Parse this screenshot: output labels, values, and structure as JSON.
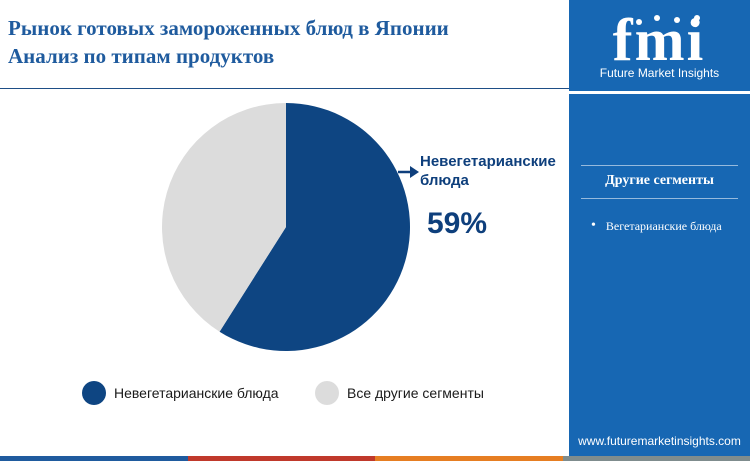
{
  "header": {
    "title": "Рынок готовых замороженных блюд в Японии",
    "subtitle": "Анализ по типам продуктов"
  },
  "chart_data": {
    "type": "pie",
    "slices": [
      {
        "name": "Невегетарианские блюда",
        "value": 59,
        "color": "#0e4582"
      },
      {
        "name": "Все другие сегменты",
        "value": 41,
        "color": "#dcdcdc"
      }
    ],
    "callout": {
      "label": "Невегетарианские блюда",
      "value": "59%"
    },
    "legend_position": "bottom"
  },
  "legend": {
    "items": [
      {
        "label": "Невегетарианские блюда",
        "color": "#0e4582"
      },
      {
        "label": "Все другие сегменты",
        "color": "#dcdcdc"
      }
    ]
  },
  "sidebar": {
    "logo_text": "fmi",
    "logo_caption": "Future Market Insights",
    "segments_heading": "Другие сегменты",
    "segments": [
      "Вегетарианские блюда"
    ],
    "website": "www.futuremarketinsights.com",
    "background_color": "#1767b3"
  },
  "footer": {
    "stripe_colors": [
      "#1f5b9e",
      "#c0392b",
      "#e67e22",
      "#7f8c8d"
    ]
  }
}
